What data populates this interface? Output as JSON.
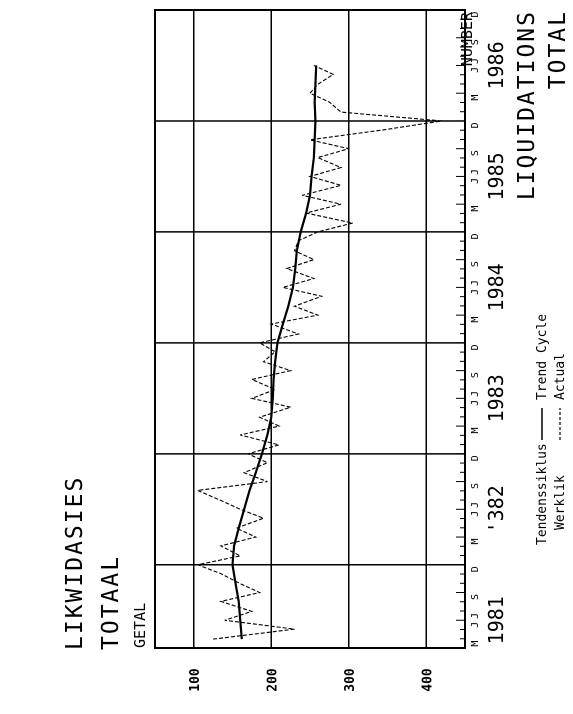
{
  "titles": {
    "afrikaans_line1": "LIKWIDASIES",
    "afrikaans_line2": "TOTAAL",
    "english_line1": "LIQUIDATIONS",
    "english_line2": "TOTAL"
  },
  "axis_labels": {
    "left": "GETAL",
    "right": "NUMBER"
  },
  "legend": {
    "trend_af": "Tendenssiklus",
    "trend_en": "Trend Cycle",
    "actual_af": "Werklik",
    "actual_en": "Actual"
  },
  "chart_data": {
    "type": "line",
    "title": "LIQUIDATIONS TOTAL",
    "xlabel": "",
    "ylabel": "NUMBER",
    "ylim": [
      50,
      450
    ],
    "yticks": [
      100,
      200,
      300,
      400
    ],
    "xlim": [
      1981.25,
      1987.0
    ],
    "year_ticks": [
      {
        "x": 1981.5,
        "label": "1981"
      },
      {
        "x": 1982.5,
        "label": "'382"
      },
      {
        "x": 1983.5,
        "label": "1983"
      },
      {
        "x": 1984.5,
        "label": "1984"
      },
      {
        "x": 1985.5,
        "label": "1985"
      },
      {
        "x": 1986.5,
        "label": "1986"
      }
    ],
    "month_letters": [
      {
        "x": 1981.29,
        "label": "M"
      },
      {
        "x": 1981.46,
        "label": "J"
      },
      {
        "x": 1981.54,
        "label": "J"
      },
      {
        "x": 1981.71,
        "label": "S"
      },
      {
        "x": 1981.96,
        "label": "D"
      },
      {
        "x": 1982.21,
        "label": "M"
      },
      {
        "x": 1982.46,
        "label": "J"
      },
      {
        "x": 1982.54,
        "label": "J"
      },
      {
        "x": 1982.71,
        "label": "S"
      },
      {
        "x": 1982.96,
        "label": "D"
      },
      {
        "x": 1983.21,
        "label": "M"
      },
      {
        "x": 1983.46,
        "label": "J"
      },
      {
        "x": 1983.54,
        "label": "J"
      },
      {
        "x": 1983.71,
        "label": "S"
      },
      {
        "x": 1983.96,
        "label": "D"
      },
      {
        "x": 1984.21,
        "label": "M"
      },
      {
        "x": 1984.46,
        "label": "J"
      },
      {
        "x": 1984.54,
        "label": "J"
      },
      {
        "x": 1984.71,
        "label": "S"
      },
      {
        "x": 1984.96,
        "label": "D"
      },
      {
        "x": 1985.21,
        "label": "M"
      },
      {
        "x": 1985.46,
        "label": "J"
      },
      {
        "x": 1985.54,
        "label": "J"
      },
      {
        "x": 1985.71,
        "label": "S"
      },
      {
        "x": 1985.96,
        "label": "D"
      },
      {
        "x": 1986.21,
        "label": "M"
      },
      {
        "x": 1986.46,
        "label": "J"
      },
      {
        "x": 1986.54,
        "label": "J"
      },
      {
        "x": 1986.71,
        "label": "S"
      },
      {
        "x": 1986.96,
        "label": "D"
      }
    ],
    "series": [
      {
        "name": "Trend Cycle",
        "style": "solid",
        "x": [
          1981.33,
          1981.5,
          1981.67,
          1981.83,
          1982.0,
          1982.17,
          1982.33,
          1982.5,
          1982.67,
          1982.83,
          1983.0,
          1983.17,
          1983.33,
          1983.5,
          1983.67,
          1983.83,
          1984.0,
          1984.17,
          1984.33,
          1984.5,
          1984.67,
          1984.83,
          1985.0,
          1985.17,
          1985.33,
          1985.5,
          1985.67,
          1985.83,
          1986.0,
          1986.17,
          1986.33,
          1986.5
        ],
        "values": [
          162,
          160,
          158,
          154,
          150,
          152,
          158,
          165,
          172,
          180,
          188,
          195,
          200,
          202,
          203,
          205,
          208,
          215,
          222,
          228,
          231,
          233,
          238,
          245,
          250,
          252,
          255,
          256,
          257,
          256,
          257,
          258
        ]
      },
      {
        "name": "Actual",
        "style": "dashed",
        "x": [
          1981.33,
          1981.42,
          1981.5,
          1981.58,
          1981.67,
          1981.75,
          1981.83,
          1981.92,
          1982.0,
          1982.08,
          1982.17,
          1982.25,
          1982.33,
          1982.42,
          1982.5,
          1982.58,
          1982.67,
          1982.75,
          1982.83,
          1982.92,
          1983.0,
          1983.08,
          1983.17,
          1983.25,
          1983.33,
          1983.42,
          1983.5,
          1983.58,
          1983.67,
          1983.75,
          1983.83,
          1983.92,
          1984.0,
          1984.08,
          1984.17,
          1984.25,
          1984.33,
          1984.42,
          1984.5,
          1984.58,
          1984.67,
          1984.75,
          1984.83,
          1984.92,
          1985.0,
          1985.08,
          1985.17,
          1985.25,
          1985.33,
          1985.42,
          1985.5,
          1985.58,
          1985.67,
          1985.75,
          1985.83,
          1985.92,
          1986.0,
          1986.08,
          1986.17,
          1986.25,
          1986.33,
          1986.42,
          1986.5
        ],
        "values": [
          125,
          230,
          140,
          175,
          135,
          185,
          160,
          135,
          105,
          160,
          135,
          180,
          155,
          190,
          160,
          135,
          105,
          195,
          165,
          195,
          170,
          210,
          160,
          210,
          185,
          225,
          175,
          205,
          175,
          225,
          190,
          205,
          185,
          235,
          200,
          260,
          230,
          265,
          215,
          255,
          220,
          255,
          230,
          235,
          260,
          305,
          245,
          290,
          240,
          290,
          250,
          290,
          260,
          300,
          250,
          345,
          420,
          290,
          275,
          250,
          260,
          280,
          255
        ]
      }
    ]
  }
}
